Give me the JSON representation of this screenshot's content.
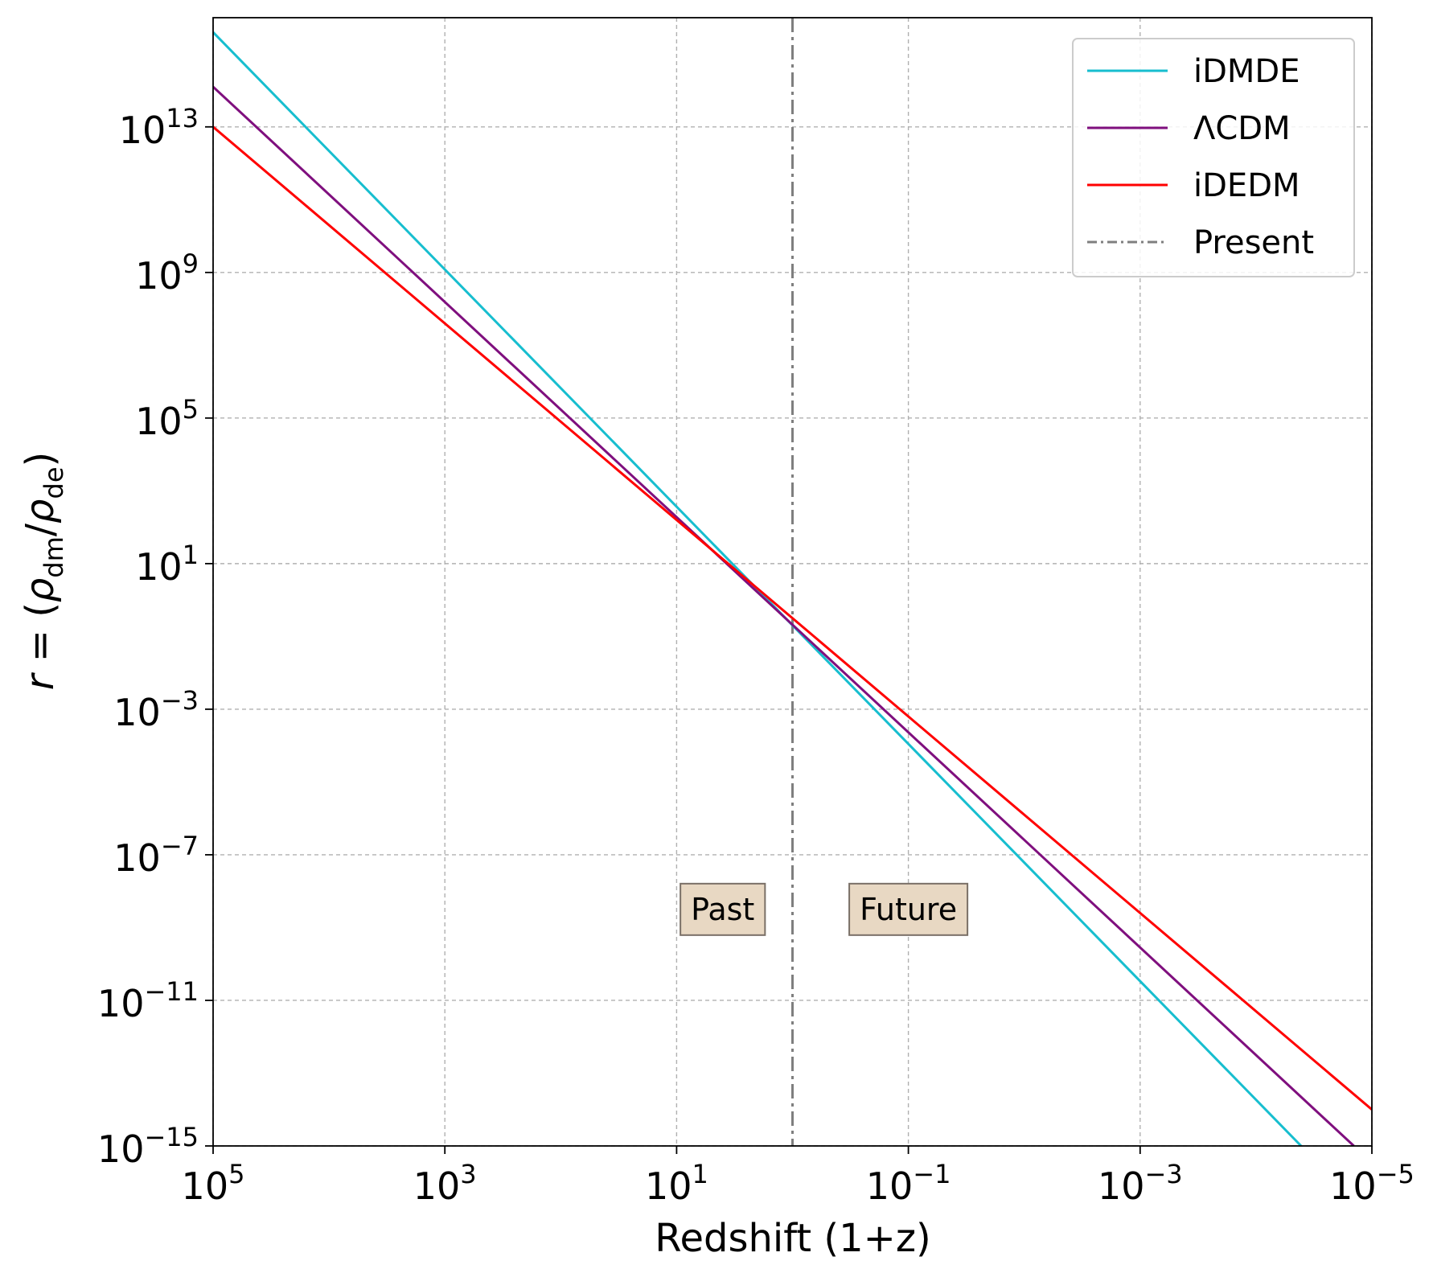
{
  "chart_data": {
    "type": "line",
    "title": "",
    "xlabel": "Redshift (1+z)",
    "ylabel": "r = (ρdm/ρde)",
    "x_scale": "log",
    "y_scale": "log",
    "x_inverted": true,
    "xlim": [
      100000,
      1e-05
    ],
    "ylim": [
      1e-15,
      1e+16
    ],
    "grid": true,
    "legend_position": "top-right",
    "x_ticks": [
      {
        "value": 100000,
        "base": "10",
        "exp": "5"
      },
      {
        "value": 1000,
        "base": "10",
        "exp": "3"
      },
      {
        "value": 10,
        "base": "10",
        "exp": "1"
      },
      {
        "value": 0.1,
        "base": "10",
        "exp": "−1"
      },
      {
        "value": 0.001,
        "base": "10",
        "exp": "−3"
      },
      {
        "value": 1e-05,
        "base": "10",
        "exp": "−5"
      }
    ],
    "y_ticks": [
      {
        "value": 10000000000000.0,
        "base": "10",
        "exp": "13"
      },
      {
        "value": 1000000000.0,
        "base": "10",
        "exp": "9"
      },
      {
        "value": 100000.0,
        "base": "10",
        "exp": "5"
      },
      {
        "value": 10,
        "base": "10",
        "exp": "1"
      },
      {
        "value": 0.001,
        "base": "10",
        "exp": "−3"
      },
      {
        "value": 1e-07,
        "base": "10",
        "exp": "−7"
      },
      {
        "value": 1e-11,
        "base": "10",
        "exp": "−11"
      },
      {
        "value": 1e-15,
        "base": "10",
        "exp": "−15"
      }
    ],
    "series": [
      {
        "name": "iDMDE",
        "color": "#17becf",
        "style": "solid",
        "x": [
          100000,
          4.08e-05
        ],
        "y": [
          3980000000000000.0,
          1e-15
        ]
      },
      {
        "name": "ΛCDM",
        "color": "#7f0f7e",
        "style": "solid",
        "x": [
          100000,
          1.43e-05
        ],
        "y": [
          126000000000000.0,
          1e-15
        ]
      },
      {
        "name": "iDEDM",
        "color": "#ff0000",
        "style": "solid",
        "x": [
          100000,
          1e-05
        ],
        "y": [
          10000000000000.0,
          1e-14
        ]
      }
    ],
    "reference_line": {
      "name": "Present",
      "color": "#7f7f7f",
      "style": "dashdot",
      "x": 1
    },
    "annotations": [
      {
        "text": "Past",
        "x": 4,
        "y": 3.16e-09
      },
      {
        "text": "Future",
        "x": 0.1,
        "y": 3.16e-09
      }
    ],
    "annotation_box_color": "#e8d8c3"
  }
}
